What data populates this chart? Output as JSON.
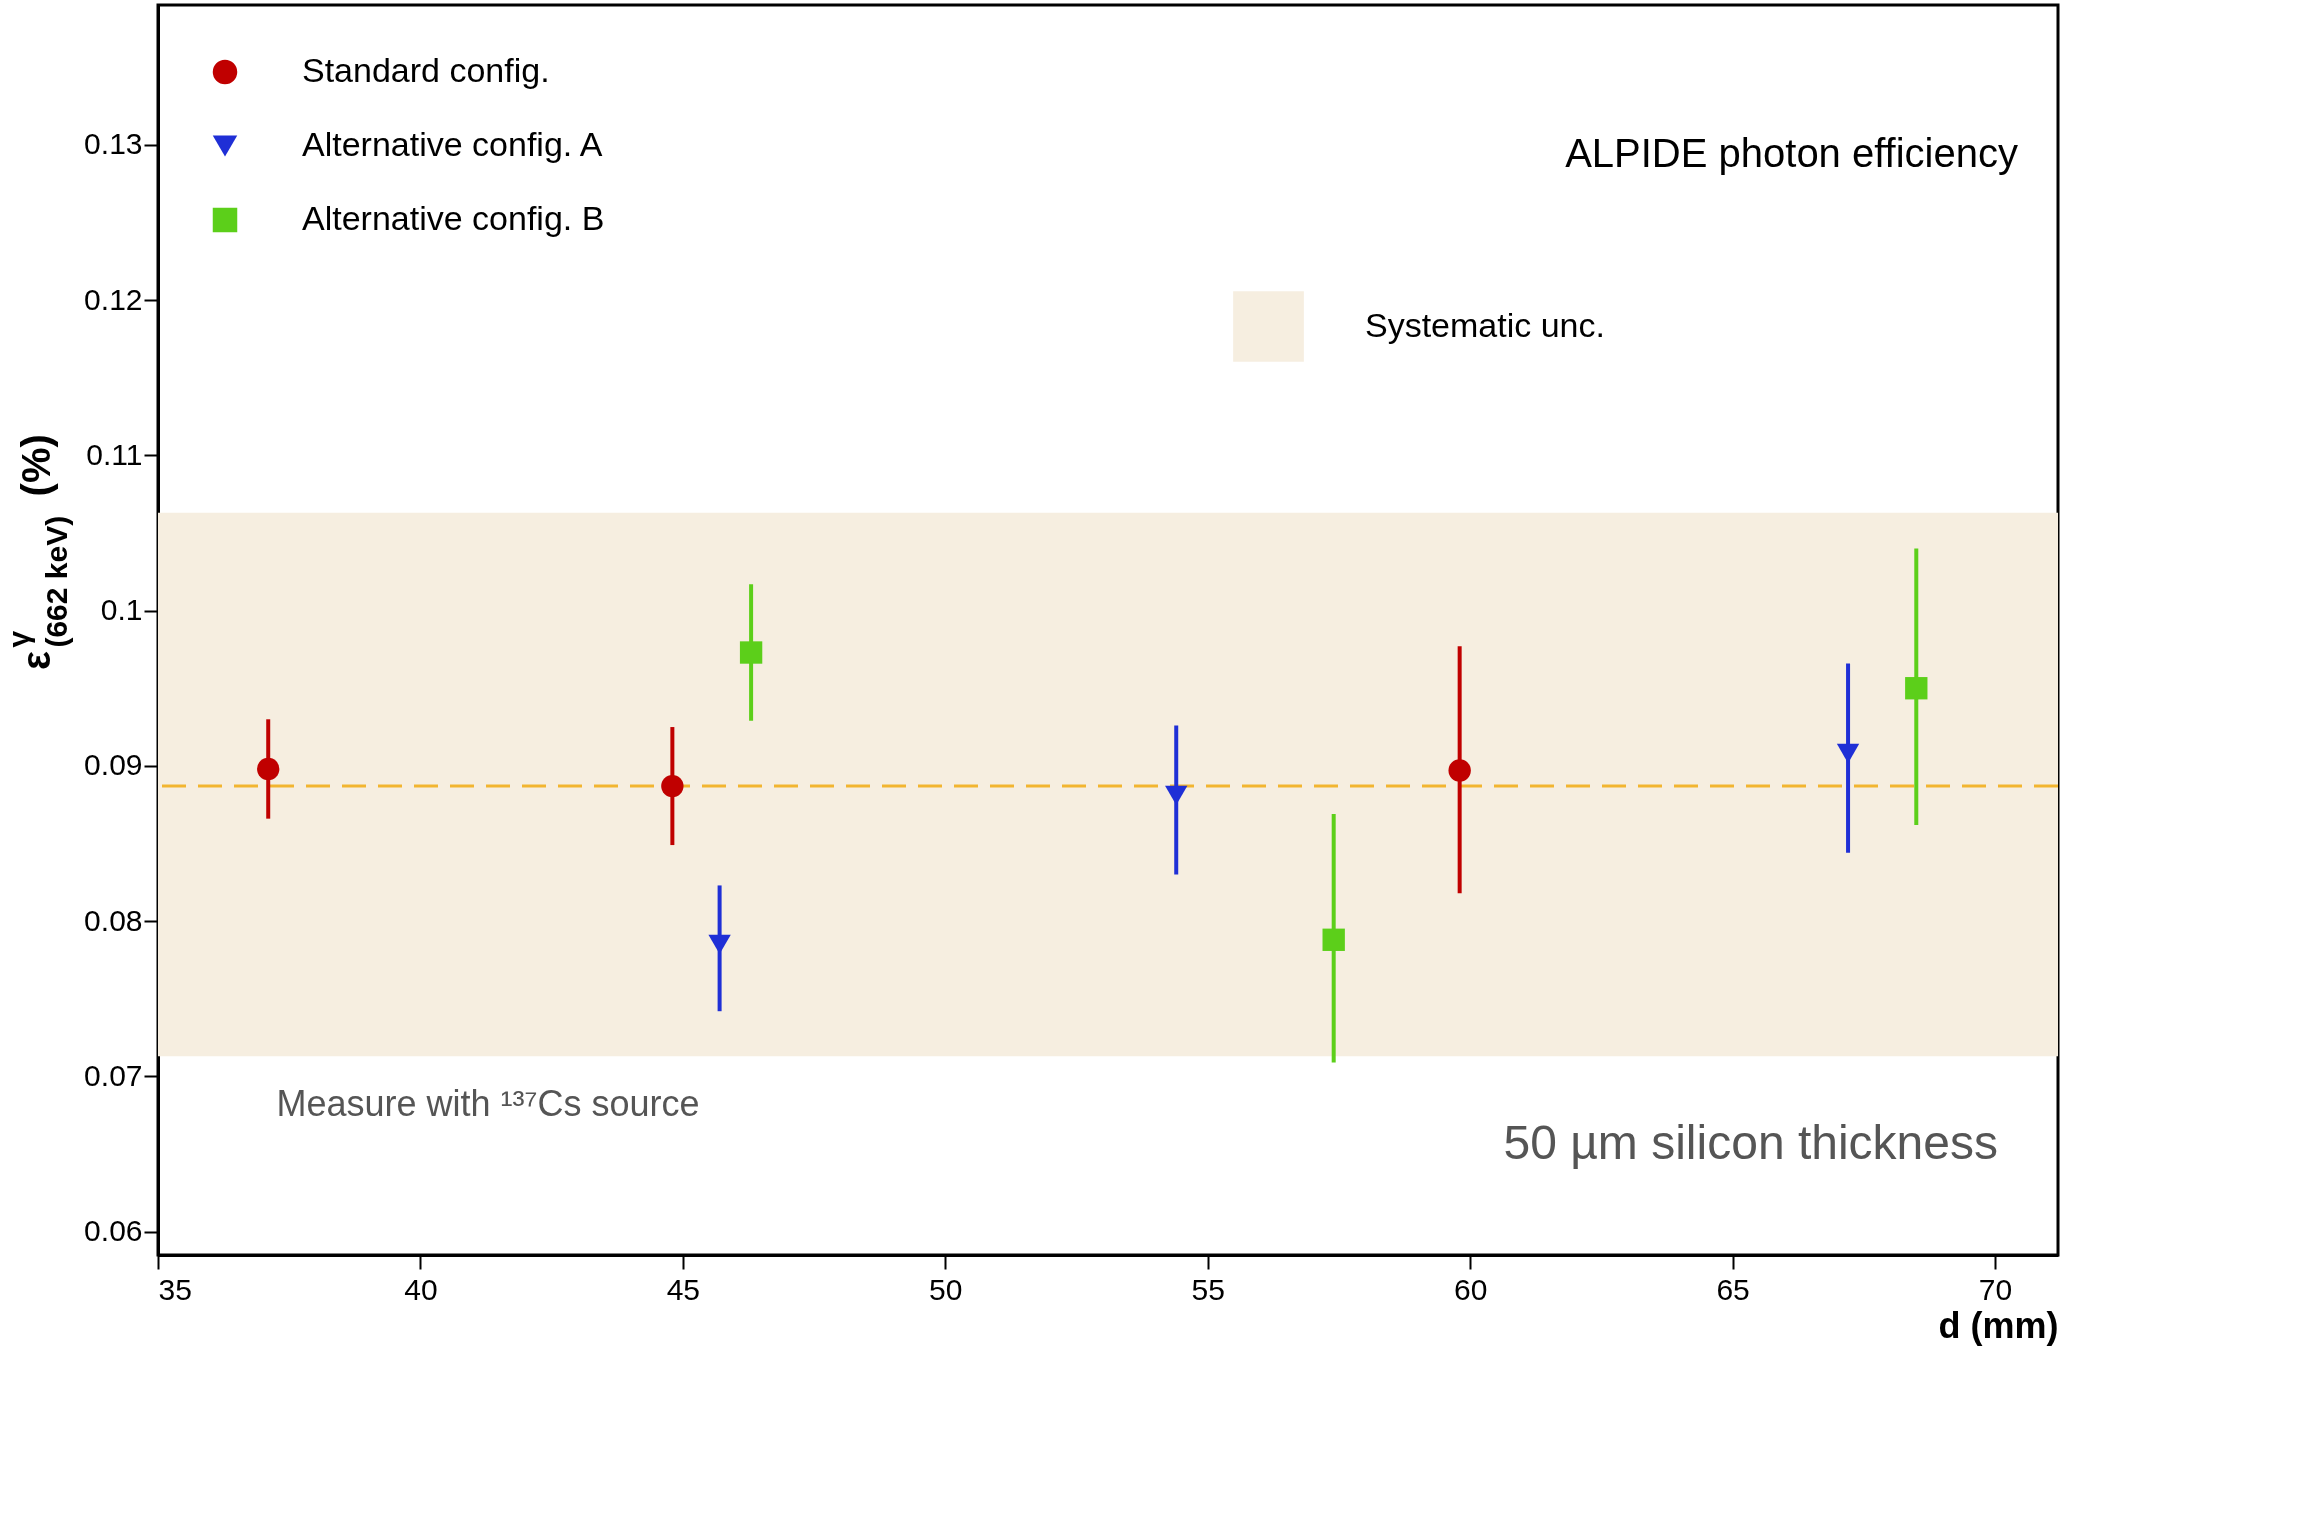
{
  "chart_data": {
    "type": "scatter",
    "title": "ALPIDE photon efficiency",
    "xlabel": "d (mm)",
    "ylabel": "ε$^{γ}$$_{(662 keV)}$ (%)",
    "xlim": [
      35,
      71.2
    ],
    "xticks": [
      35,
      40,
      45,
      50,
      55,
      60,
      65,
      70
    ],
    "ylim": [
      0.0585,
      0.139
    ],
    "yticks": [
      0.06,
      0.07,
      0.08,
      0.09,
      0.1,
      0.11,
      0.12,
      0.13
    ],
    "series": [
      {
        "name": "Standard config.",
        "color": "#c00000",
        "marker": "circle",
        "x": [
          37.1,
          44.8,
          59.8
        ],
        "values": [
          0.0898,
          0.0887,
          0.0897
        ],
        "errors": [
          [
            0.0866,
            0.093
          ],
          [
            0.0849,
            0.0925
          ],
          [
            0.0818,
            0.0977
          ]
        ]
      },
      {
        "name": "Alternative config. A",
        "color": "#1f2fd6",
        "marker": "triangle",
        "x": [
          45.7,
          54.4,
          67.2
        ],
        "values": [
          0.0785,
          0.0881,
          0.0908
        ],
        "errors": [
          [
            0.0742,
            0.0823
          ],
          [
            0.083,
            0.0926
          ],
          [
            0.0844,
            0.0966
          ]
        ]
      },
      {
        "name": "Alternative config. B",
        "color": "#5ccf1a",
        "marker": "square",
        "x": [
          46.3,
          57.4,
          68.5
        ],
        "values": [
          0.0973,
          0.0788,
          0.095
        ],
        "errors": [
          [
            0.0929,
            0.1017
          ],
          [
            0.0709,
            0.0869
          ],
          [
            0.0862,
            0.104
          ]
        ]
      }
    ],
    "ref_lines": [
      {
        "axis": "y",
        "value": 0.0887,
        "color": "#f2b530",
        "line_style": "dashed"
      }
    ],
    "bands": [
      {
        "axis": "y",
        "from": 0.0713,
        "to": 0.1063,
        "label": "Systematic unc.",
        "color": "#f6eee0"
      }
    ],
    "annotations": [
      "Measure with ¹³⁷Cs source",
      "50 µm silicon thickness"
    ],
    "legend": "top left",
    "grid": false
  }
}
